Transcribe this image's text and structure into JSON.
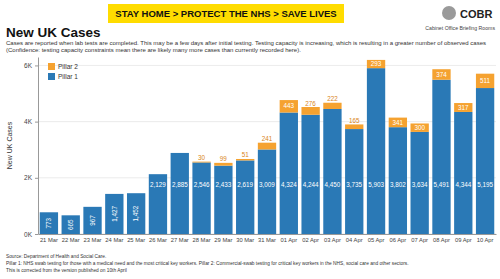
{
  "header": {
    "banner": "STAY HOME > PROTECT THE NHS > SAVE LIVES",
    "org": "COBR",
    "org_full": "Cabinet Office Briefing Rooms"
  },
  "chart_data": {
    "type": "bar",
    "title": "New UK Cases",
    "subtitle": "Cases are reported when lab tests are completed. This may be a few days after initial testing. Testing capacity is increasing, which is resulting in a greater number of observed cases (Confidence: testing capacity constraints mean there are likely many more cases than currently recorded here).",
    "ylabel": "New UK Cases",
    "categories": [
      "21 Mar",
      "22 Mar",
      "23 Mar",
      "24 Mar",
      "25 Mar",
      "26 Mar",
      "27 Mar",
      "28 Mar",
      "29 Mar",
      "30 Mar",
      "31 Mar",
      "01 Apr",
      "02 Apr",
      "03 Apr",
      "04 Apr",
      "05 Apr",
      "06 Apr",
      "07 Apr",
      "08 Apr",
      "09 Apr",
      "10 Apr"
    ],
    "series": [
      {
        "name": "Pillar 1",
        "color": "#2a79b6",
        "values": [
          773,
          665,
          967,
          1427,
          1452,
          2129,
          2885,
          2546,
          2433,
          2619,
          3009,
          4324,
          4244,
          4450,
          3735,
          5903,
          3802,
          3634,
          5491,
          4344,
          5195
        ],
        "value_labels": [
          "773",
          "665",
          "967",
          "1,427",
          "1,452",
          "2,129",
          "2,885",
          "2,546",
          "2,433",
          "2,619",
          "3,009",
          "4,324",
          "4,244",
          "4,450",
          "3,735",
          "5,903",
          "3,802",
          "3,634",
          "5,491",
          "4,344",
          "5,195"
        ]
      },
      {
        "name": "Pillar 2",
        "color": "#f5a230",
        "values": [
          null,
          null,
          null,
          null,
          null,
          null,
          null,
          30,
          99,
          51,
          241,
          443,
          276,
          222,
          165,
          293,
          341,
          300,
          374,
          317,
          511
        ]
      }
    ],
    "stacked": true,
    "data_labels": true,
    "legend": "upper left",
    "grid": true,
    "ylim": [
      0,
      6300
    ],
    "yticks": [
      {
        "value": 0,
        "label": "0K"
      },
      {
        "value": 2000,
        "label": "2K"
      },
      {
        "value": 4000,
        "label": "4K"
      },
      {
        "value": 6000,
        "label": "6K"
      }
    ]
  },
  "footer": {
    "source": "Source: Department of Health and Social Care.",
    "pillars": "Pillar 1: NHS swab testing for those with a medical need and the most critical key workers. Pillar 2: Commercial-swab testing for critical key workers in the NHS, social care and other sectors.",
    "correction": "This is corrected from the version published on 10th April"
  }
}
